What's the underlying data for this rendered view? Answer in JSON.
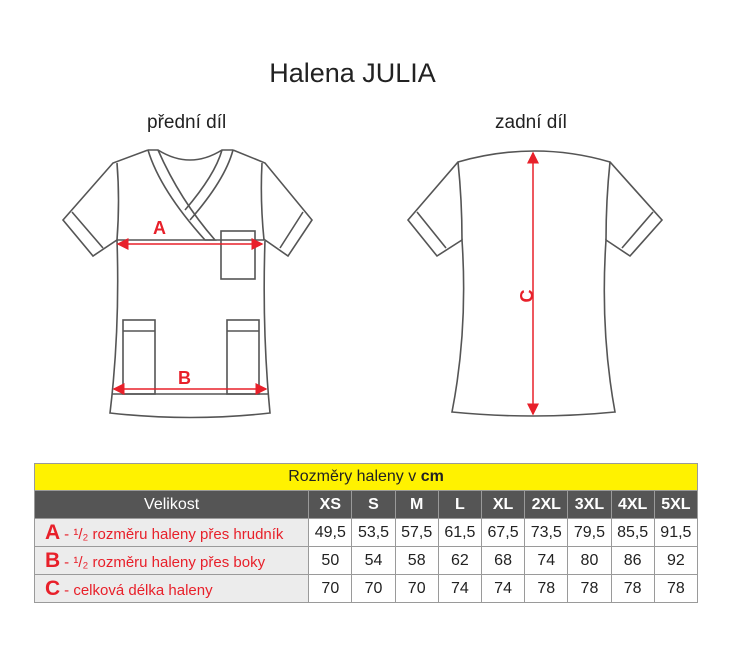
{
  "title": "Halena JULIA",
  "front_label": "přední díl",
  "back_label": "zadní díl",
  "markers": {
    "a": "A",
    "b": "B",
    "c": "C"
  },
  "colors": {
    "accent": "#e8202a",
    "header_bg": "#555555",
    "caption_bg": "#fff200"
  },
  "table": {
    "caption_prefix": "Rozměry haleny v ",
    "caption_unit": "cm",
    "size_header": "Velikost",
    "sizes": [
      "XS",
      "S",
      "M",
      "L",
      "XL",
      "2XL",
      "3XL",
      "4XL",
      "5XL"
    ],
    "rows": [
      {
        "key": "A",
        "label": "- ¹/₂ rozměru haleny přes hrudník",
        "values": [
          "49,5",
          "53,5",
          "57,5",
          "61,5",
          "67,5",
          "73,5",
          "79,5",
          "85,5",
          "91,5"
        ]
      },
      {
        "key": "B",
        "label": "- ¹/₂ rozměru haleny přes boky",
        "values": [
          "50",
          "54",
          "58",
          "62",
          "68",
          "74",
          "80",
          "86",
          "92"
        ]
      },
      {
        "key": "C",
        "label": "- celková délka haleny",
        "values": [
          "70",
          "70",
          "70",
          "74",
          "74",
          "78",
          "78",
          "78",
          "78"
        ]
      }
    ]
  }
}
